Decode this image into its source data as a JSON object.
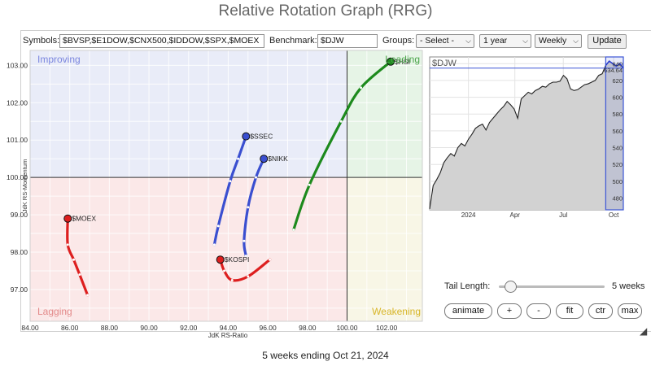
{
  "page_title": "Relative Rotation Graph (RRG)",
  "controls": {
    "symbols_label": "Symbols:",
    "symbols_value": "$BVSP,$E1DOW,$CNX500,$IDDOW,$SPX,$MOEX",
    "benchmark_label": "Benchmark:",
    "benchmark_value": "$DJW",
    "groups_label": "Groups:",
    "groups_value": "- Select -",
    "period_value": "1 year",
    "frequency_value": "Weekly",
    "update_label": "Update"
  },
  "rrg": {
    "quadrants": {
      "improving": "Improving",
      "leading": "Leading",
      "weakening": "Weakening",
      "lagging": "Lagging"
    },
    "colors": {
      "improving": "#e9ecf8",
      "leading": "#e6f4e6",
      "weakening": "#f8f6e6",
      "lagging": "#fbe8e8",
      "improving_text": "#7b86df",
      "leading_text": "#4aa54a",
      "weakening_text": "#d8b62a",
      "lagging_text": "#e38a8a"
    },
    "x_axis_label": "JdK RS-Ratio",
    "y_axis_label": "JdK RS-Momentum",
    "x_ticks": [
      "84.00",
      "86.00",
      "88.00",
      "90.00",
      "92.00",
      "94.00",
      "96.00",
      "98.00",
      "100.00",
      "102.00"
    ],
    "y_ticks": [
      "103.00",
      "102.00",
      "101.00",
      "100.00",
      "99.00",
      "98.00",
      "97.00"
    ]
  },
  "chart_data": {
    "type": "scatter",
    "title": "",
    "xlabel": "JdK RS-Ratio",
    "ylabel": "JdK RS-Momentum",
    "xlim": [
      84,
      103.8
    ],
    "ylim": [
      96.15,
      103.4
    ],
    "grid": true,
    "series": [
      {
        "name": "$HSI",
        "color": "#1d8a1d",
        "points": [
          [
            97.3,
            98.6
          ],
          [
            98.1,
            99.8
          ],
          [
            99.7,
            101.5
          ],
          [
            100.7,
            102.4
          ],
          [
            102.2,
            103.1
          ]
        ]
      },
      {
        "name": "$SSEC",
        "color": "#3a4fd0",
        "points": [
          [
            93.3,
            98.2
          ],
          [
            93.5,
            98.7
          ],
          [
            94.1,
            99.9
          ],
          [
            94.5,
            100.5
          ],
          [
            94.9,
            101.1
          ]
        ]
      },
      {
        "name": "$NIKK",
        "color": "#3a4fd0",
        "points": [
          [
            94.9,
            97.9
          ],
          [
            94.8,
            98.3
          ],
          [
            95.0,
            99.2
          ],
          [
            95.4,
            100.0
          ],
          [
            95.8,
            100.5
          ]
        ]
      },
      {
        "name": "$MOEX",
        "color": "#dd1f1f",
        "points": [
          [
            86.9,
            96.85
          ],
          [
            86.5,
            97.4
          ],
          [
            86.2,
            97.8
          ],
          [
            85.9,
            98.2
          ],
          [
            85.9,
            98.9
          ]
        ]
      },
      {
        "name": "$KOSPI",
        "color": "#dd1f1f",
        "points": [
          [
            96.1,
            97.8
          ],
          [
            95.0,
            97.35
          ],
          [
            94.2,
            97.25
          ],
          [
            93.8,
            97.5
          ],
          [
            93.6,
            97.8
          ]
        ]
      }
    ]
  },
  "mini_chart": {
    "symbol": "$DJW",
    "last_value": "634.64",
    "y_ticks": [
      "640",
      "620",
      "600",
      "580",
      "560",
      "540",
      "520",
      "500",
      "480"
    ],
    "x_ticks": [
      "2024",
      "Apr",
      "Jul",
      "Oct"
    ],
    "chart_data": {
      "type": "area",
      "ylim": [
        466,
        648
      ],
      "x_index_range": [
        0,
        52
      ],
      "values": [
        467,
        495,
        502,
        510,
        522,
        528,
        533,
        530,
        540,
        545,
        542,
        550,
        556,
        563,
        566,
        568,
        561,
        570,
        575,
        580,
        585,
        589,
        595,
        591,
        586,
        575,
        598,
        602,
        606,
        604,
        608,
        610,
        613,
        612,
        616,
        618,
        618,
        619,
        626,
        622,
        610,
        608,
        609,
        612,
        615,
        616,
        618,
        620,
        626,
        628,
        638,
        643,
        640,
        637,
        640,
        634.64
      ]
    }
  },
  "tail": {
    "label": "Tail Length:",
    "value": "5 weeks",
    "weeks": 5,
    "max_weeks": 12
  },
  "bottom_buttons": {
    "animate": "animate",
    "plus": "+",
    "minus": "-",
    "fit": "fit",
    "ctr": "ctr",
    "max": "max"
  },
  "footer_text": "5 weeks ending Oct 21, 2024"
}
